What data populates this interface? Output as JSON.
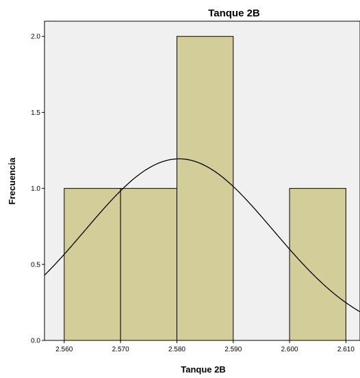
{
  "chart_data": {
    "type": "bar",
    "title": "Tanque 2B",
    "xlabel": "Tanque 2B",
    "ylabel": "Frecuencia",
    "bins": [
      {
        "from": 2.56,
        "to": 2.57,
        "count": 1
      },
      {
        "from": 2.57,
        "to": 2.58,
        "count": 1
      },
      {
        "from": 2.58,
        "to": 2.59,
        "count": 2
      },
      {
        "from": 2.6,
        "to": 2.61,
        "count": 1
      }
    ],
    "xlim": [
      2.5565,
      2.6125
    ],
    "ylim": [
      0,
      2.1
    ],
    "xticks": [
      2.56,
      2.57,
      2.58,
      2.59,
      2.6,
      2.61
    ],
    "xtick_labels": [
      "2.560",
      "2.570",
      "2.580",
      "2.590",
      "2.600",
      "2.610"
    ],
    "yticks": [
      0,
      0.5,
      1.0,
      1.5,
      2.0
    ],
    "ytick_labels": [
      "0.0",
      "0.5",
      "1.0",
      "1.5",
      "2.0"
    ],
    "normal_curve": {
      "mean": 2.5804,
      "std_dev": 0.0167,
      "n": 5,
      "bin_width": 0.01
    },
    "grid": false,
    "colors": {
      "bar_fill": "#D3CE99",
      "bar_stroke": "#000000",
      "plot_background": "#F0F0F0",
      "curve": "#000000"
    }
  }
}
